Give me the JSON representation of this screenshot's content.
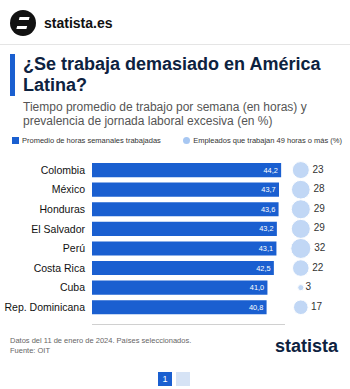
{
  "chart_data": {
    "type": "bar",
    "orientation": "horizontal",
    "title": "¿Se trabaja demasiado en América Latina?",
    "subtitle": "Tiempo promedio de trabajo por semana (en horas) y prevalencia de jornada laboral excesiva (en %)",
    "categories": [
      "Colombia",
      "México",
      "Honduras",
      "El Salvador",
      "Perú",
      "Costa Rica",
      "Cuba",
      "Rep. Dominicana"
    ],
    "series": [
      {
        "name": "Promedio de horas semanales trabajadas",
        "type": "bar",
        "color": "#1a5fd0",
        "values": [
          44.2,
          43.7,
          43.6,
          43.2,
          43.1,
          42.5,
          41.0,
          40.8
        ],
        "value_labels": [
          "44,2",
          "43,7",
          "43,6",
          "43,2",
          "43,1",
          "42,5",
          "41,0",
          "40,8"
        ]
      },
      {
        "name": "Empleados que trabajan 49 horas o más (%)",
        "type": "bubble",
        "marker": "circle",
        "color": "#a7c7f2",
        "values": [
          23,
          28,
          29,
          29,
          32,
          22,
          3,
          17
        ]
      }
    ],
    "data_labels": true,
    "xlim": [
      0,
      45
    ],
    "xticks": [],
    "tick_labels": "y",
    "grid": false,
    "note": "Datos del 11 de enero de 2024. Países seleccionados.",
    "source": "Fuente: OIT",
    "annotations": [
      "statista.es",
      "statista",
      "1"
    ]
  }
}
